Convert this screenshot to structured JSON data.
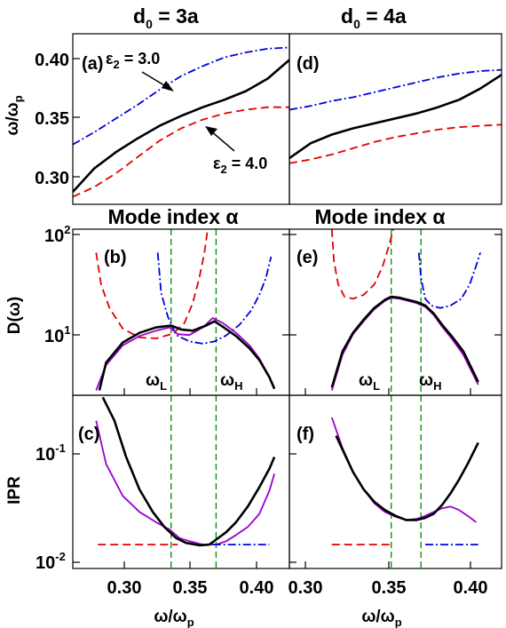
{
  "figure": {
    "column_titles": [
      {
        "main": "d",
        "sub": "0",
        "rest": " = 3a"
      },
      {
        "main": "d",
        "sub": "0",
        "rest": " = 4a"
      }
    ],
    "row_labels": {
      "top": {
        "main": "ω/ω",
        "sub": "p"
      },
      "middle": "D(ω)",
      "bottom": "IPR"
    },
    "middle_xlabel": "Mode index  α",
    "bottom_xlabel": {
      "main": "ω/ω",
      "sub": "p"
    },
    "panel_labels": [
      "(a)",
      "(b)",
      "(c)",
      "(d)",
      "(e)",
      "(f)"
    ],
    "annotations": {
      "eps_top": {
        "main": "ε",
        "sub": "2",
        "rest": " = 3.0"
      },
      "eps_bottom": {
        "main": "ε",
        "sub": "2",
        "rest": " = 4.0"
      },
      "omega_L": {
        "main": "ω",
        "sub": "L"
      },
      "omega_H": {
        "main": "ω",
        "sub": "H"
      }
    },
    "y_ticks_top": [
      "0.40",
      "0.35",
      "0.30"
    ],
    "y_ticks_middle": [
      {
        "base": "10",
        "exp": "2"
      },
      {
        "base": "10",
        "exp": "1"
      }
    ],
    "y_ticks_bottom": [
      {
        "base": "10",
        "exp": "-1"
      },
      {
        "base": "10",
        "exp": "-2"
      }
    ],
    "x_ticks_left": [
      "0.30",
      "0.35",
      "0.40"
    ],
    "x_ticks_right": [
      "0.30",
      "0.35",
      "0.40"
    ]
  },
  "colors": {
    "black": "#000000",
    "red": "#e00000",
    "blue": "#0000dd",
    "purple": "#9900cc",
    "green": "#008800"
  },
  "chart_data": [
    {
      "panel": "(a)",
      "type": "line",
      "ylim": [
        0.283,
        0.42
      ],
      "xlim": [
        0,
        1
      ],
      "series": [
        {
          "name": "ε2 = 3.0",
          "color": "blue",
          "style": "dashdot",
          "x": [
            0,
            0.1,
            0.2,
            0.3,
            0.4,
            0.5,
            0.6,
            0.7,
            0.8,
            0.9,
            1.0
          ],
          "y": [
            0.331,
            0.341,
            0.352,
            0.363,
            0.375,
            0.386,
            0.394,
            0.401,
            0.405,
            0.408,
            0.409
          ]
        },
        {
          "name": "",
          "color": "black",
          "style": "solid",
          "x": [
            0,
            0.1,
            0.2,
            0.3,
            0.4,
            0.5,
            0.6,
            0.7,
            0.8,
            0.9,
            1.0
          ],
          "y": [
            0.293,
            0.312,
            0.325,
            0.336,
            0.346,
            0.354,
            0.361,
            0.367,
            0.374,
            0.384,
            0.399
          ]
        },
        {
          "name": "ε2 = 4.0",
          "color": "red",
          "style": "dashed",
          "x": [
            0,
            0.1,
            0.2,
            0.3,
            0.4,
            0.5,
            0.6,
            0.7,
            0.8,
            0.9,
            1.0
          ],
          "y": [
            0.289,
            0.297,
            0.308,
            0.321,
            0.334,
            0.344,
            0.351,
            0.356,
            0.359,
            0.361,
            0.361
          ]
        }
      ]
    },
    {
      "panel": "(d)",
      "type": "line",
      "ylim": [
        0.283,
        0.42
      ],
      "xlim": [
        0,
        1
      ],
      "series": [
        {
          "name": "",
          "color": "blue",
          "style": "dashdot",
          "x": [
            0,
            0.1,
            0.2,
            0.3,
            0.4,
            0.5,
            0.6,
            0.7,
            0.8,
            0.9,
            1.0
          ],
          "y": [
            0.359,
            0.362,
            0.366,
            0.369,
            0.373,
            0.377,
            0.381,
            0.385,
            0.388,
            0.39,
            0.391
          ]
        },
        {
          "name": "",
          "color": "black",
          "style": "solid",
          "x": [
            0,
            0.1,
            0.2,
            0.3,
            0.4,
            0.5,
            0.6,
            0.7,
            0.8,
            0.9,
            1.0
          ],
          "y": [
            0.32,
            0.332,
            0.339,
            0.344,
            0.348,
            0.352,
            0.356,
            0.361,
            0.367,
            0.376,
            0.387
          ]
        },
        {
          "name": "",
          "color": "red",
          "style": "dashed",
          "x": [
            0,
            0.1,
            0.2,
            0.3,
            0.4,
            0.5,
            0.6,
            0.7,
            0.8,
            0.9,
            1.0
          ],
          "y": [
            0.316,
            0.319,
            0.323,
            0.328,
            0.333,
            0.337,
            0.34,
            0.343,
            0.345,
            0.346,
            0.347
          ]
        }
      ]
    },
    {
      "panel": "(b)",
      "type": "line",
      "yscale": "log",
      "ylim": [
        2.7,
        100
      ],
      "xlim": [
        0.28,
        0.41
      ],
      "vlines": [
        0.339,
        0.366
      ],
      "series": [
        {
          "name": "",
          "color": "red",
          "style": "dashed",
          "x": [
            0.294,
            0.297,
            0.302,
            0.31,
            0.32,
            0.33,
            0.34,
            0.347,
            0.352,
            0.356,
            0.359,
            0.361
          ],
          "y": [
            60,
            30,
            18,
            11.5,
            9.5,
            9.3,
            10.3,
            13,
            20,
            35,
            60,
            100
          ]
        },
        {
          "name": "",
          "color": "blue",
          "style": "dashdot",
          "x": [
            0.331,
            0.333,
            0.337,
            0.342,
            0.35,
            0.358,
            0.365,
            0.372,
            0.38,
            0.387,
            0.392,
            0.396,
            0.399
          ],
          "y": [
            60,
            25,
            15,
            10,
            8.7,
            8.3,
            8.7,
            9.9,
            12.5,
            17,
            24,
            35,
            55
          ]
        },
        {
          "name": "",
          "color": "purple",
          "style": "solid",
          "x": [
            0.294,
            0.3,
            0.31,
            0.32,
            0.33,
            0.338,
            0.343,
            0.35,
            0.358,
            0.364,
            0.37,
            0.378,
            0.386,
            0.392,
            0.398,
            0.401
          ],
          "y": [
            3.0,
            5.2,
            8.0,
            9.8,
            11.0,
            11.8,
            10.2,
            10.0,
            11.8,
            14.5,
            13.0,
            10.5,
            8.0,
            6.0,
            4.0,
            3.2
          ]
        },
        {
          "name": "",
          "color": "black",
          "style": "solid",
          "x": [
            0.296,
            0.3,
            0.31,
            0.32,
            0.33,
            0.339,
            0.345,
            0.352,
            0.36,
            0.365,
            0.37,
            0.378,
            0.386,
            0.392,
            0.398,
            0.401
          ],
          "y": [
            3.0,
            5.5,
            8.5,
            10.5,
            11.8,
            12.3,
            11.3,
            11.0,
            12.3,
            13.5,
            12.0,
            9.8,
            7.5,
            5.8,
            4.0,
            3.1
          ]
        }
      ]
    },
    {
      "panel": "(e)",
      "type": "line",
      "yscale": "log",
      "ylim": [
        2.7,
        100
      ],
      "xlim": [
        0.3,
        0.4
      ],
      "vlines": [
        0.348,
        0.362
      ],
      "series": [
        {
          "name": "",
          "color": "red",
          "style": "dashed",
          "x": [
            0.32,
            0.321,
            0.323,
            0.326,
            0.33,
            0.335,
            0.34,
            0.344,
            0.347,
            0.349
          ],
          "y": [
            100,
            50,
            30,
            23,
            22,
            24,
            30,
            45,
            70,
            100
          ]
        },
        {
          "name": "",
          "color": "blue",
          "style": "dashdot",
          "x": [
            0.361,
            0.362,
            0.364,
            0.367,
            0.371,
            0.376,
            0.381,
            0.385,
            0.388,
            0.39
          ],
          "y": [
            60,
            35,
            22,
            19,
            18,
            19,
            22,
            30,
            45,
            60
          ]
        },
        {
          "name": "",
          "color": "purple",
          "style": "solid",
          "x": [
            0.32,
            0.325,
            0.33,
            0.335,
            0.34,
            0.345,
            0.348,
            0.352,
            0.356,
            0.36,
            0.364,
            0.368,
            0.372,
            0.377,
            0.382,
            0.386,
            0.389
          ],
          "y": [
            3.0,
            6.5,
            10.2,
            13.5,
            17.5,
            21,
            22.5,
            22,
            21,
            20,
            18.5,
            15.5,
            12,
            9,
            6.5,
            4.5,
            3.4
          ]
        },
        {
          "name": "",
          "color": "black",
          "style": "solid",
          "x": [
            0.32,
            0.325,
            0.33,
            0.335,
            0.34,
            0.345,
            0.348,
            0.352,
            0.356,
            0.36,
            0.364,
            0.368,
            0.372,
            0.377,
            0.382,
            0.386,
            0.389
          ],
          "y": [
            3.2,
            7,
            10.5,
            14,
            18,
            21.5,
            23,
            22.5,
            21.5,
            20.5,
            19,
            16,
            12.5,
            9.5,
            7,
            4.8,
            3.6
          ]
        }
      ]
    },
    {
      "panel": "(c)",
      "type": "line",
      "yscale": "log",
      "ylim": [
        0.0095,
        0.26
      ],
      "xlim": [
        0.28,
        0.41
      ],
      "vlines": [
        0.339,
        0.366
      ],
      "series": [
        {
          "name": "",
          "color": "purple",
          "style": "solid",
          "x": [
            0.294,
            0.3,
            0.31,
            0.32,
            0.33,
            0.338,
            0.344,
            0.35,
            0.358,
            0.366,
            0.372,
            0.378,
            0.385,
            0.392,
            0.398,
            0.401
          ],
          "y": [
            0.16,
            0.07,
            0.038,
            0.028,
            0.023,
            0.02,
            0.017,
            0.016,
            0.015,
            0.015,
            0.016,
            0.018,
            0.021,
            0.027,
            0.042,
            0.058
          ]
        },
        {
          "name": "",
          "color": "black",
          "style": "solid",
          "x": [
            0.298,
            0.305,
            0.312,
            0.32,
            0.328,
            0.335,
            0.342,
            0.348,
            0.356,
            0.362,
            0.366,
            0.372,
            0.378,
            0.385,
            0.392,
            0.398,
            0.401
          ],
          "y": [
            0.25,
            0.16,
            0.08,
            0.043,
            0.028,
            0.021,
            0.017,
            0.0155,
            0.0148,
            0.015,
            0.0165,
            0.019,
            0.023,
            0.031,
            0.045,
            0.064,
            0.08
          ]
        },
        {
          "name": "",
          "color": "red",
          "style": "dashed",
          "x": [
            0.295,
            0.343
          ],
          "y": [
            0.015,
            0.015
          ]
        },
        {
          "name": "",
          "color": "blue",
          "style": "dashdot",
          "x": [
            0.364,
            0.398
          ],
          "y": [
            0.015,
            0.015
          ]
        }
      ]
    },
    {
      "panel": "(f)",
      "type": "line",
      "yscale": "log",
      "ylim": [
        0.0095,
        0.26
      ],
      "xlim": [
        0.3,
        0.4
      ],
      "vlines": [
        0.348,
        0.362
      ],
      "series": [
        {
          "name": "",
          "color": "purple",
          "style": "solid",
          "x": [
            0.32,
            0.325,
            0.33,
            0.335,
            0.34,
            0.345,
            0.35,
            0.355,
            0.36,
            0.364,
            0.368,
            0.372,
            0.376,
            0.38,
            0.384,
            0.388
          ],
          "y": [
            0.17,
            0.095,
            0.06,
            0.043,
            0.033,
            0.028,
            0.0255,
            0.024,
            0.0245,
            0.026,
            0.028,
            0.03,
            0.031,
            0.029,
            0.026,
            0.023
          ]
        },
        {
          "name": "",
          "color": "black",
          "style": "solid",
          "x": [
            0.322,
            0.326,
            0.33,
            0.335,
            0.34,
            0.345,
            0.35,
            0.355,
            0.36,
            0.364,
            0.368,
            0.372,
            0.376,
            0.38,
            0.384,
            0.389
          ],
          "y": [
            0.12,
            0.085,
            0.06,
            0.043,
            0.034,
            0.029,
            0.026,
            0.024,
            0.024,
            0.025,
            0.027,
            0.032,
            0.04,
            0.052,
            0.07,
            0.105
          ]
        },
        {
          "name": "",
          "color": "red",
          "style": "dashed",
          "x": [
            0.32,
            0.348
          ],
          "y": [
            0.015,
            0.015
          ]
        },
        {
          "name": "",
          "color": "blue",
          "style": "dashdot",
          "x": [
            0.364,
            0.389
          ],
          "y": [
            0.015,
            0.015
          ]
        }
      ]
    }
  ]
}
